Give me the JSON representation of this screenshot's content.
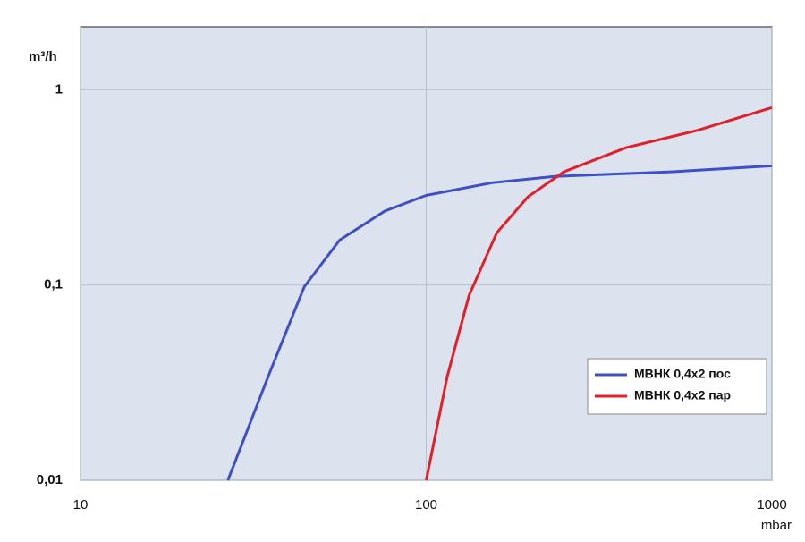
{
  "chart_data": {
    "type": "line",
    "y_label": "m³/h",
    "x_label": "mbar",
    "log_x": true,
    "log_y": true,
    "grid": true,
    "legend": "lower right",
    "xlim": [
      10,
      1000
    ],
    "xticks": [
      10,
      100,
      1000
    ],
    "ylim": [
      0.01,
      2.1
    ],
    "yticks": [
      {
        "value": 0.01,
        "label": "0,01"
      },
      {
        "value": 0.1,
        "label": "0,1"
      },
      1
    ],
    "series": [
      {
        "name": "МВНК 0,4х2 пос",
        "color": "#3f4fc8",
        "x": [
          26.7,
          34.9,
          44.4,
          56.2,
          75.8,
          100,
          155,
          235,
          510,
          1000
        ],
        "values": [
          0.01,
          0.034,
          0.098,
          0.17,
          0.239,
          0.288,
          0.334,
          0.36,
          0.38,
          0.408
        ]
      },
      {
        "name": "МВНК 0,4х2 пар",
        "color": "#e0202a",
        "x": [
          100,
          115,
          133,
          160,
          197,
          250,
          379,
          610,
          1000
        ],
        "values": [
          0.01,
          0.034,
          0.0885,
          0.185,
          0.283,
          0.38,
          0.505,
          0.62,
          0.81
        ]
      }
    ]
  }
}
